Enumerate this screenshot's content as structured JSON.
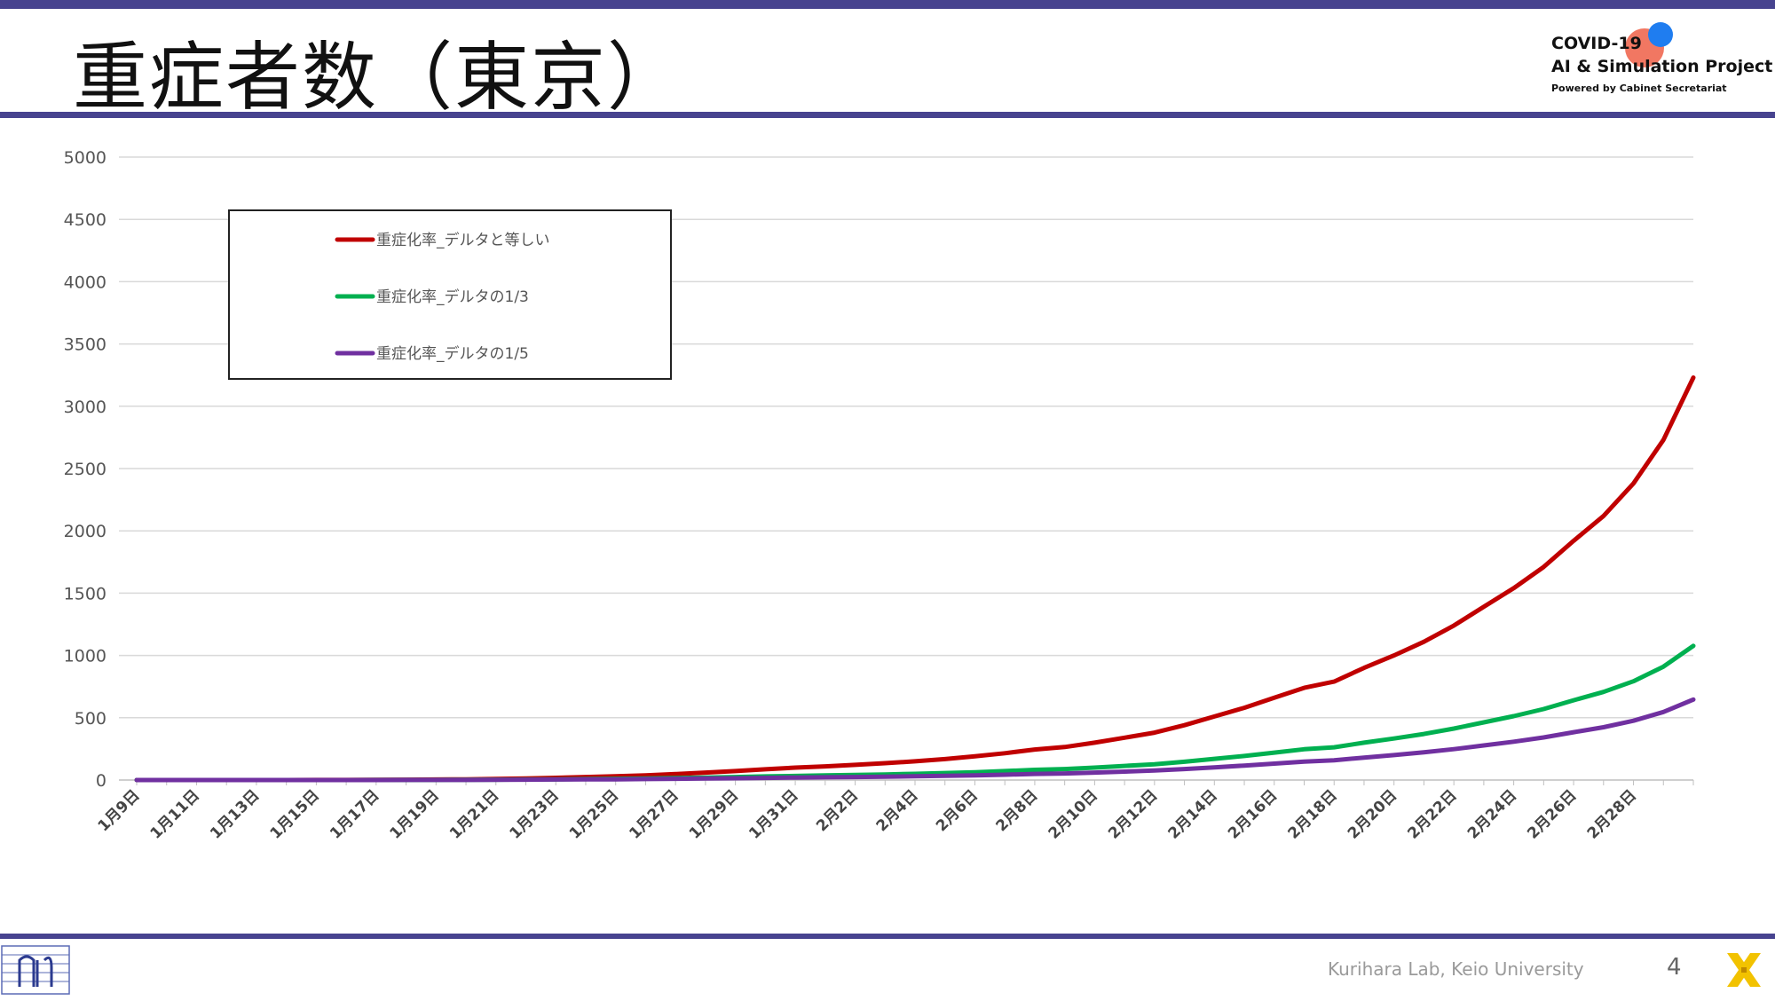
{
  "slide": {
    "title": "重症者数（東京）",
    "page_number": "4",
    "footer_text": "Kurihara Lab, Keio University"
  },
  "logo": {
    "line1": "COVID-19",
    "line2": "AI & Simulation Project",
    "line3": "Powered by Cabinet Secretariat"
  },
  "colors": {
    "band": "#47438f",
    "series1": "#c00000",
    "series2": "#00b050",
    "series3": "#7030a0"
  },
  "chart_data": {
    "type": "line",
    "title": "",
    "xlabel": "",
    "ylabel": "",
    "ylim": [
      0,
      5000
    ],
    "yticks": [
      0,
      500,
      1000,
      1500,
      2000,
      2500,
      3000,
      3500,
      4000,
      4500,
      5000
    ],
    "grid": true,
    "legend_position": "top-left",
    "x": [
      "1月9日",
      "1月10日",
      "1月11日",
      "1月12日",
      "1月13日",
      "1月14日",
      "1月15日",
      "1月16日",
      "1月17日",
      "1月18日",
      "1月19日",
      "1月20日",
      "1月21日",
      "1月22日",
      "1月23日",
      "1月24日",
      "1月25日",
      "1月26日",
      "1月27日",
      "1月28日",
      "1月29日",
      "1月30日",
      "1月31日",
      "2月1日",
      "2月2日",
      "2月3日",
      "2月4日",
      "2月5日",
      "2月6日",
      "2月7日",
      "2月8日",
      "2月9日",
      "2月10日",
      "2月11日",
      "2月12日",
      "2月13日",
      "2月14日",
      "2月15日",
      "2月16日",
      "2月17日",
      "2月18日",
      "2月19日",
      "2月20日",
      "2月21日",
      "2月22日",
      "2月23日",
      "2月24日",
      "2月25日",
      "2月26日",
      "2月27日",
      "2月28日",
      "3月1日",
      "3月2日"
    ],
    "x_tick_labels": [
      "1月9日",
      "1月11日",
      "1月13日",
      "1月15日",
      "1月17日",
      "1月19日",
      "1月21日",
      "1月23日",
      "1月25日",
      "1月27日",
      "1月29日",
      "1月31日",
      "2月2日",
      "2月4日",
      "2月6日",
      "2月8日",
      "2月10日",
      "2月12日",
      "2月14日",
      "2月16日",
      "2月18日",
      "2月20日",
      "2月22日",
      "2月24日",
      "2月26日",
      "2月28日"
    ],
    "series": [
      {
        "name": "重症化率_デルタと等しい",
        "color": "#c00000",
        "values": [
          0,
          0,
          0,
          0,
          0,
          0,
          1,
          1,
          2,
          3,
          4,
          6,
          9,
          13,
          18,
          24,
          30,
          38,
          48,
          60,
          72,
          86,
          100,
          110,
          122,
          135,
          150,
          168,
          190,
          215,
          245,
          265,
          300,
          340,
          380,
          440,
          510,
          580,
          660,
          740,
          790,
          900,
          1000,
          1110,
          1240,
          1390,
          1540,
          1710,
          1920,
          2120,
          2380,
          2730,
          3230
        ]
      },
      {
        "name": "重症化率_デルタの1/3",
        "color": "#00b050",
        "values": [
          0,
          0,
          0,
          0,
          0,
          0,
          0,
          0,
          1,
          1,
          1,
          2,
          3,
          4,
          6,
          8,
          10,
          13,
          16,
          20,
          24,
          29,
          33,
          37,
          41,
          45,
          50,
          56,
          63,
          72,
          82,
          88,
          100,
          113,
          127,
          147,
          170,
          193,
          220,
          247,
          263,
          300,
          333,
          370,
          413,
          463,
          513,
          570,
          640,
          707,
          793,
          910,
          1077
        ]
      },
      {
        "name": "重症化率_デルタの1/5",
        "color": "#7030a0",
        "values": [
          0,
          0,
          0,
          0,
          0,
          0,
          0,
          0,
          0,
          1,
          1,
          1,
          2,
          3,
          4,
          5,
          6,
          8,
          10,
          12,
          14,
          17,
          20,
          22,
          24,
          27,
          30,
          34,
          38,
          43,
          49,
          53,
          60,
          68,
          76,
          88,
          102,
          116,
          132,
          148,
          158,
          180,
          200,
          222,
          248,
          278,
          308,
          342,
          384,
          424,
          476,
          546,
          646
        ]
      }
    ]
  }
}
